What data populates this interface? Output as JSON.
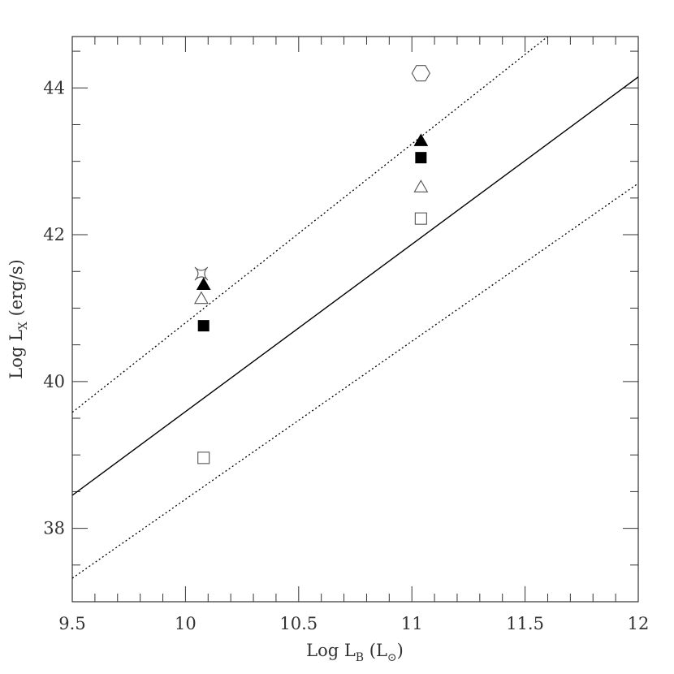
{
  "chart_data": {
    "type": "scatter",
    "title": "",
    "xlabel": "Log L_B (L_⊙)",
    "ylabel": "Log L_X (erg/s)",
    "xlabel_parts": {
      "main": "Log L",
      "sub": "B",
      "unit": "(L",
      "unit_sub": "⊙",
      "unit_close": ")"
    },
    "ylabel_parts": {
      "main": "Log L",
      "sub": "X",
      "unit": "(erg/s)"
    },
    "xlim": [
      9.5,
      12
    ],
    "ylim": [
      37,
      44.7
    ],
    "x_ticks": [
      {
        "value": 9.5,
        "label": "9.5"
      },
      {
        "value": 10,
        "label": "10"
      },
      {
        "value": 10.5,
        "label": "10.5"
      },
      {
        "value": 11,
        "label": "11"
      },
      {
        "value": 11.5,
        "label": "11.5"
      },
      {
        "value": 12,
        "label": "12"
      }
    ],
    "y_ticks": [
      {
        "value": 38,
        "label": "38"
      },
      {
        "value": 40,
        "label": "40"
      },
      {
        "value": 42,
        "label": "42"
      },
      {
        "value": 44,
        "label": "44"
      }
    ],
    "x_minor_step": 0.1,
    "y_minor_step": 0.5,
    "grid": false,
    "lines": [
      {
        "style": "solid",
        "x": [
          9.5,
          12
        ],
        "y": [
          38.45,
          44.15
        ]
      },
      {
        "style": "dotted",
        "x": [
          9.5,
          11.6
        ],
        "y": [
          39.58,
          44.7
        ]
      },
      {
        "style": "dotted",
        "x": [
          9.5,
          12
        ],
        "y": [
          37.32,
          42.7
        ]
      }
    ],
    "series": [
      {
        "marker": "filled-triangle",
        "x": [
          10.08,
          11.04
        ],
        "y": [
          41.32,
          43.28
        ]
      },
      {
        "marker": "open-triangle",
        "x": [
          10.07,
          11.04
        ],
        "y": [
          41.13,
          42.65
        ]
      },
      {
        "marker": "filled-square",
        "x": [
          10.08,
          11.04
        ],
        "y": [
          40.76,
          43.05
        ]
      },
      {
        "marker": "open-square",
        "x": [
          10.08,
          11.04
        ],
        "y": [
          38.96,
          42.22
        ]
      },
      {
        "marker": "open-star",
        "x": [
          10.07
        ],
        "y": [
          41.47
        ]
      },
      {
        "marker": "open-hexagon",
        "x": [
          11.04
        ],
        "y": [
          44.2
        ]
      }
    ],
    "colors": {
      "axis": "#333333",
      "line": "#000000",
      "marker": "#000000",
      "open_marker": "#555555"
    }
  }
}
